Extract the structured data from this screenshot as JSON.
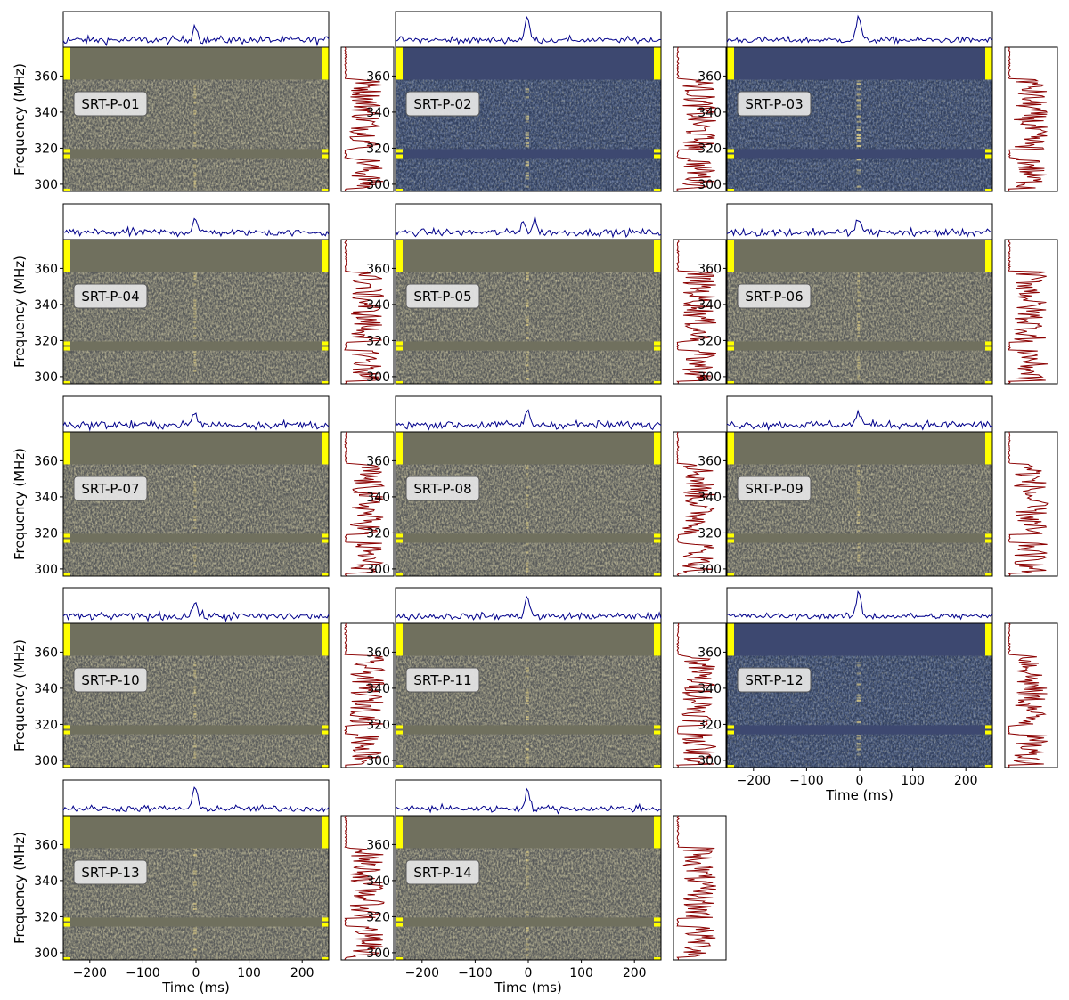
{
  "figure": {
    "ylabel": "Frequency (MHz)",
    "xlabel": "Time (ms)"
  },
  "colors": {
    "profile_line": "#00008b",
    "spectrum_line": "#8b0000",
    "flag_marker": "#ffff00",
    "dyn_background": "#70705e",
    "dyn_noise_low": "#2a3e6e",
    "dyn_noise_high": "#e6d27a",
    "pulse": "#f5e08a",
    "label_box_fill": "#e3e3e3",
    "label_box_edge": "#555555"
  },
  "chart_data": [
    {
      "type": "heatmap",
      "label": "SRT-P-01",
      "show_xaxis": false,
      "pulse_profile": "single",
      "peak": 0.55,
      "cmap_tint": "gray",
      "ylim": [
        296,
        376
      ],
      "xlim": [
        -250,
        250
      ],
      "yticks": [
        300,
        320,
        340,
        360
      ],
      "xticks": [
        -200,
        -100,
        0,
        100,
        200
      ]
    },
    {
      "type": "heatmap",
      "label": "SRT-P-02",
      "show_xaxis": false,
      "pulse_profile": "single",
      "peak": 0.85,
      "cmap_tint": "blue",
      "ylim": [
        296,
        376
      ],
      "xlim": [
        -250,
        250
      ],
      "yticks": [
        300,
        320,
        340,
        360
      ],
      "xticks": [
        -200,
        -100,
        0,
        100,
        200
      ]
    },
    {
      "type": "heatmap",
      "label": "SRT-P-03",
      "show_xaxis": false,
      "pulse_profile": "single",
      "peak": 0.9,
      "cmap_tint": "blue",
      "ylim": [
        296,
        376
      ],
      "xlim": [
        -250,
        250
      ],
      "yticks": [
        300,
        320,
        340,
        360
      ],
      "xticks": [
        -200,
        -100,
        0,
        100,
        200
      ]
    },
    {
      "type": "heatmap",
      "label": "SRT-P-04",
      "show_xaxis": false,
      "pulse_profile": "single",
      "peak": 0.55,
      "cmap_tint": "gray",
      "ylim": [
        296,
        376
      ],
      "xlim": [
        -250,
        250
      ],
      "yticks": [
        300,
        320,
        340,
        360
      ],
      "xticks": [
        -200,
        -100,
        0,
        100,
        200
      ]
    },
    {
      "type": "heatmap",
      "label": "SRT-P-05",
      "show_xaxis": false,
      "pulse_profile": "double",
      "peak": 0.7,
      "cmap_tint": "gray",
      "ylim": [
        296,
        376
      ],
      "xlim": [
        -250,
        250
      ],
      "yticks": [
        300,
        320,
        340,
        360
      ],
      "xticks": [
        -200,
        -100,
        0,
        100,
        200
      ]
    },
    {
      "type": "heatmap",
      "label": "SRT-P-06",
      "show_xaxis": false,
      "pulse_profile": "single",
      "peak": 0.55,
      "cmap_tint": "gray",
      "ylim": [
        296,
        376
      ],
      "xlim": [
        -250,
        250
      ],
      "yticks": [
        300,
        320,
        340,
        360
      ],
      "xticks": [
        -200,
        -100,
        0,
        100,
        200
      ]
    },
    {
      "type": "heatmap",
      "label": "SRT-P-07",
      "show_xaxis": false,
      "pulse_profile": "single",
      "peak": 0.45,
      "cmap_tint": "gray",
      "ylim": [
        296,
        376
      ],
      "xlim": [
        -250,
        250
      ],
      "yticks": [
        300,
        320,
        340,
        360
      ],
      "xticks": [
        -200,
        -100,
        0,
        100,
        200
      ]
    },
    {
      "type": "heatmap",
      "label": "SRT-P-08",
      "show_xaxis": false,
      "pulse_profile": "single",
      "peak": 0.5,
      "cmap_tint": "gray",
      "ylim": [
        296,
        376
      ],
      "xlim": [
        -250,
        250
      ],
      "yticks": [
        300,
        320,
        340,
        360
      ],
      "xticks": [
        -200,
        -100,
        0,
        100,
        200
      ]
    },
    {
      "type": "heatmap",
      "label": "SRT-P-09",
      "show_xaxis": false,
      "pulse_profile": "single",
      "peak": 0.5,
      "cmap_tint": "gray",
      "ylim": [
        296,
        376
      ],
      "xlim": [
        -250,
        250
      ],
      "yticks": [
        300,
        320,
        340,
        360
      ],
      "xticks": [
        -200,
        -100,
        0,
        100,
        200
      ]
    },
    {
      "type": "heatmap",
      "label": "SRT-P-10",
      "show_xaxis": false,
      "pulse_profile": "single",
      "peak": 0.55,
      "cmap_tint": "gray",
      "ylim": [
        296,
        376
      ],
      "xlim": [
        -250,
        250
      ],
      "yticks": [
        300,
        320,
        340,
        360
      ],
      "xticks": [
        -200,
        -100,
        0,
        100,
        200
      ]
    },
    {
      "type": "heatmap",
      "label": "SRT-P-11",
      "show_xaxis": false,
      "pulse_profile": "single",
      "peak": 0.75,
      "cmap_tint": "gray",
      "ylim": [
        296,
        376
      ],
      "xlim": [
        -250,
        250
      ],
      "yticks": [
        300,
        320,
        340,
        360
      ],
      "xticks": [
        -200,
        -100,
        0,
        100,
        200
      ]
    },
    {
      "type": "heatmap",
      "label": "SRT-P-12",
      "show_xaxis": true,
      "pulse_profile": "single",
      "peak": 0.9,
      "cmap_tint": "blue",
      "ylim": [
        296,
        376
      ],
      "xlim": [
        -250,
        250
      ],
      "yticks": [
        300,
        320,
        340,
        360
      ],
      "xticks": [
        -200,
        -100,
        0,
        100,
        200
      ]
    },
    {
      "type": "heatmap",
      "label": "SRT-P-13",
      "show_xaxis": true,
      "pulse_profile": "single",
      "peak": 0.8,
      "cmap_tint": "gray",
      "ylim": [
        296,
        376
      ],
      "xlim": [
        -250,
        250
      ],
      "yticks": [
        300,
        320,
        340,
        360
      ],
      "xticks": [
        -200,
        -100,
        0,
        100,
        200
      ]
    },
    {
      "type": "heatmap",
      "label": "SRT-P-14",
      "show_xaxis": true,
      "pulse_profile": "single",
      "peak": 0.7,
      "cmap_tint": "gray",
      "ylim": [
        296,
        376
      ],
      "xlim": [
        -250,
        250
      ],
      "yticks": [
        300,
        320,
        340,
        360
      ],
      "xticks": [
        -200,
        -100,
        0,
        100,
        200
      ]
    }
  ]
}
